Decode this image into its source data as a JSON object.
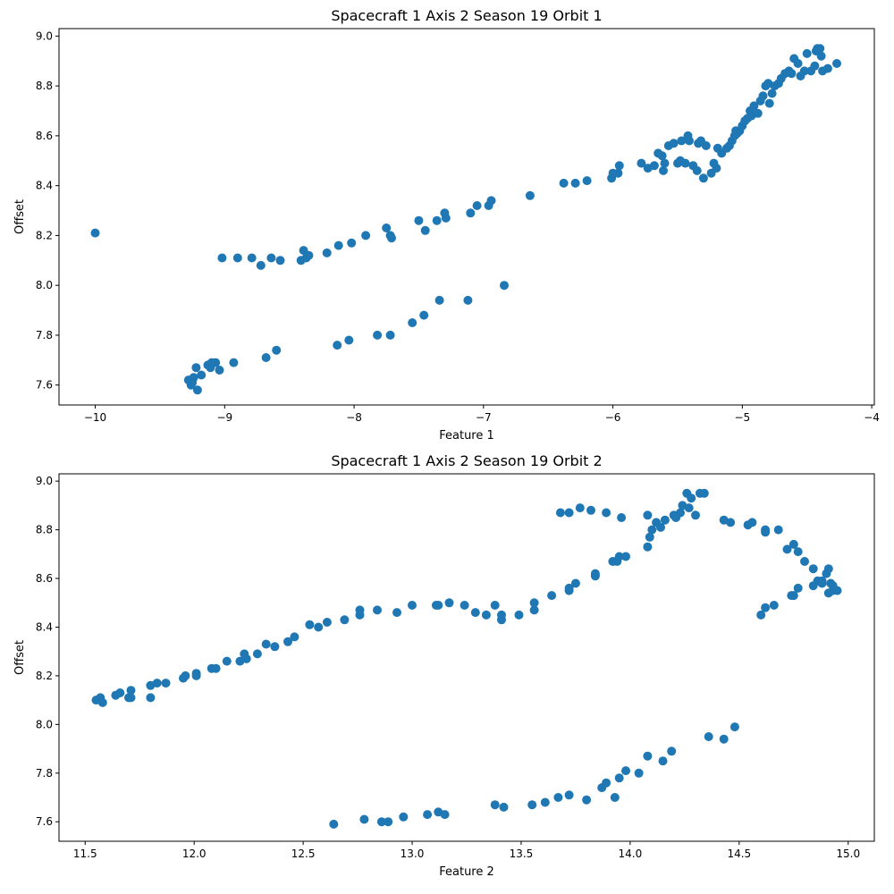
{
  "chart_data": [
    {
      "type": "scatter",
      "title": "Spacecraft 1 Axis 2 Season 19 Orbit 1",
      "xlabel": "Feature 1",
      "ylabel": "Offset",
      "xlim": [
        -10.28,
        -3.98
      ],
      "ylim": [
        7.52,
        9.03
      ],
      "xticks": [
        -10,
        -9,
        -8,
        -7,
        -6,
        -5,
        -4
      ],
      "yticks": [
        7.6,
        7.8,
        8.0,
        8.2,
        8.4,
        8.6,
        8.8,
        9.0
      ],
      "grid": false,
      "legend": "none",
      "color": "#1f77b4",
      "x": [
        -10.0,
        -9.02,
        -8.9,
        -8.79,
        -8.72,
        -8.64,
        -8.57,
        -8.41,
        -8.39,
        -8.37,
        -8.35,
        -8.21,
        -8.12,
        -8.02,
        -7.91,
        -7.75,
        -7.72,
        -7.71,
        -7.5,
        -7.45,
        -7.36,
        -7.3,
        -7.29,
        -7.1,
        -7.05,
        -6.96,
        -6.94,
        -6.64,
        -6.38,
        -6.29,
        -6.2,
        -6.01,
        -6.0,
        -5.96,
        -5.95,
        -5.78,
        -5.73,
        -5.68,
        -5.65,
        -5.62,
        -5.61,
        -5.6,
        -5.57,
        -5.53,
        -5.5,
        -5.48,
        -5.47,
        -5.44,
        -5.42,
        -5.41,
        -5.38,
        -5.35,
        -5.34,
        -5.32,
        -5.3,
        -5.28,
        -5.24,
        -5.22,
        -5.2,
        -5.19,
        -5.16,
        -5.12,
        -5.1,
        -5.08,
        -5.06,
        -5.05,
        -5.04,
        -5.02,
        -5.0,
        -4.98,
        -4.96,
        -4.94,
        -4.93,
        -4.91,
        -4.88,
        -4.86,
        -4.84,
        -4.82,
        -4.8,
        -4.79,
        -4.77,
        -4.75,
        -4.72,
        -4.7,
        -4.67,
        -4.64,
        -4.62,
        -4.6,
        -4.57,
        -4.55,
        -4.52,
        -4.5,
        -4.47,
        -4.44,
        -4.42,
        -4.4,
        -4.38,
        -4.34,
        -4.27,
        -4.43,
        -4.39,
        -9.26,
        -9.28,
        -9.24,
        -9.22,
        -9.21,
        -9.18,
        -9.13,
        -9.11,
        -9.07,
        -9.04,
        -8.93,
        -8.68,
        -8.6,
        -8.13,
        -8.04,
        -7.82,
        -7.72,
        -7.55,
        -7.46,
        -7.34,
        -7.12,
        -6.84,
        -9.25,
        -9.1
      ],
      "y": [
        8.21,
        8.11,
        8.11,
        8.11,
        8.08,
        8.11,
        8.1,
        8.1,
        8.14,
        8.11,
        8.12,
        8.13,
        8.16,
        8.17,
        8.2,
        8.23,
        8.2,
        8.19,
        8.26,
        8.22,
        8.26,
        8.29,
        8.27,
        8.29,
        8.32,
        8.32,
        8.34,
        8.36,
        8.41,
        8.41,
        8.42,
        8.43,
        8.45,
        8.45,
        8.48,
        8.49,
        8.47,
        8.48,
        8.53,
        8.52,
        8.46,
        8.49,
        8.56,
        8.57,
        8.49,
        8.5,
        8.58,
        8.49,
        8.6,
        8.58,
        8.48,
        8.46,
        8.57,
        8.58,
        8.43,
        8.56,
        8.45,
        8.49,
        8.47,
        8.55,
        8.53,
        8.55,
        8.56,
        8.58,
        8.6,
        8.62,
        8.61,
        8.62,
        8.64,
        8.66,
        8.67,
        8.7,
        8.68,
        8.72,
        8.69,
        8.74,
        8.76,
        8.8,
        8.81,
        8.73,
        8.77,
        8.8,
        8.81,
        8.83,
        8.85,
        8.86,
        8.85,
        8.91,
        8.89,
        8.84,
        8.86,
        8.93,
        8.86,
        8.88,
        8.95,
        8.95,
        8.86,
        8.87,
        8.89,
        8.94,
        8.92,
        7.6,
        7.62,
        7.63,
        7.67,
        7.58,
        7.64,
        7.68,
        7.67,
        7.69,
        7.66,
        7.69,
        7.71,
        7.74,
        7.76,
        7.78,
        7.8,
        7.8,
        7.85,
        7.88,
        7.94,
        7.94,
        8.0,
        7.61,
        7.69
      ]
    },
    {
      "type": "scatter",
      "title": "Spacecraft 1 Axis 2 Season 19 Orbit 2",
      "xlabel": "Feature 2",
      "ylabel": "Offset",
      "xlim": [
        11.38,
        15.12
      ],
      "ylim": [
        7.52,
        9.03
      ],
      "xticks": [
        11.5,
        12.0,
        12.5,
        13.0,
        13.5,
        14.0,
        14.5,
        15.0
      ],
      "yticks": [
        7.6,
        7.8,
        8.0,
        8.2,
        8.4,
        8.6,
        8.8,
        9.0
      ],
      "grid": false,
      "legend": "none",
      "color": "#1f77b4",
      "x": [
        11.55,
        11.57,
        11.58,
        11.64,
        11.66,
        11.7,
        11.71,
        11.71,
        11.8,
        11.8,
        11.83,
        11.87,
        11.95,
        11.96,
        12.01,
        12.01,
        12.08,
        12.1,
        12.15,
        12.21,
        12.23,
        12.24,
        12.29,
        12.33,
        12.37,
        12.43,
        12.46,
        12.53,
        12.57,
        12.61,
        12.69,
        12.76,
        12.76,
        12.84,
        12.93,
        13.0,
        13.11,
        13.12,
        13.17,
        13.24,
        13.29,
        13.34,
        13.38,
        13.41,
        13.41,
        13.49,
        13.56,
        13.56,
        13.64,
        13.72,
        13.72,
        13.75,
        13.84,
        13.84,
        13.92,
        13.94,
        13.95,
        13.98,
        14.08,
        14.09,
        14.1,
        14.12,
        14.14,
        14.16,
        14.2,
        14.21,
        14.23,
        14.24,
        14.26,
        14.27,
        14.28,
        14.3,
        14.32,
        14.34,
        14.43,
        14.46,
        14.54,
        14.56,
        14.62,
        14.62,
        14.68,
        14.72,
        14.75,
        14.77,
        14.8,
        14.84,
        14.86,
        14.88,
        14.9,
        14.91,
        14.92,
        14.93,
        14.95,
        14.93,
        14.91,
        14.88,
        14.84,
        14.77,
        14.74,
        14.75,
        14.66,
        14.62,
        14.6,
        14.08,
        13.96,
        13.89,
        13.82,
        13.77,
        13.72,
        13.68,
        12.64,
        12.78,
        12.86,
        12.89,
        12.96,
        13.07,
        13.12,
        13.15,
        13.38,
        13.42,
        13.55,
        13.61,
        13.67,
        13.72,
        13.8,
        13.87,
        13.89,
        13.95,
        13.98,
        14.04,
        14.15,
        14.19,
        14.36,
        14.43,
        14.48,
        13.93,
        14.08
      ],
      "y": [
        8.1,
        8.11,
        8.09,
        8.12,
        8.13,
        8.11,
        8.11,
        8.14,
        8.16,
        8.11,
        8.17,
        8.17,
        8.19,
        8.2,
        8.21,
        8.2,
        8.23,
        8.23,
        8.26,
        8.26,
        8.29,
        8.27,
        8.29,
        8.33,
        8.32,
        8.34,
        8.36,
        8.41,
        8.4,
        8.42,
        8.43,
        8.45,
        8.47,
        8.47,
        8.46,
        8.49,
        8.49,
        8.49,
        8.5,
        8.49,
        8.46,
        8.45,
        8.49,
        8.43,
        8.45,
        8.45,
        8.47,
        8.5,
        8.53,
        8.55,
        8.56,
        8.58,
        8.61,
        8.62,
        8.67,
        8.67,
        8.69,
        8.69,
        8.73,
        8.77,
        8.8,
        8.83,
        8.81,
        8.84,
        8.86,
        8.85,
        8.87,
        8.9,
        8.95,
        8.89,
        8.93,
        8.86,
        8.95,
        8.95,
        8.84,
        8.83,
        8.82,
        8.83,
        8.8,
        8.79,
        8.8,
        8.72,
        8.74,
        8.71,
        8.67,
        8.64,
        8.59,
        8.59,
        8.62,
        8.64,
        8.58,
        8.57,
        8.55,
        8.55,
        8.54,
        8.58,
        8.57,
        8.56,
        8.53,
        8.53,
        8.49,
        8.48,
        8.45,
        8.86,
        8.85,
        8.87,
        8.88,
        8.89,
        8.87,
        8.87,
        7.59,
        7.61,
        7.6,
        7.6,
        7.62,
        7.63,
        7.64,
        7.63,
        7.67,
        7.66,
        7.67,
        7.68,
        7.7,
        7.71,
        7.69,
        7.74,
        7.76,
        7.78,
        7.81,
        7.8,
        7.85,
        7.89,
        7.95,
        7.94,
        7.99,
        7.7,
        7.87
      ]
    }
  ]
}
